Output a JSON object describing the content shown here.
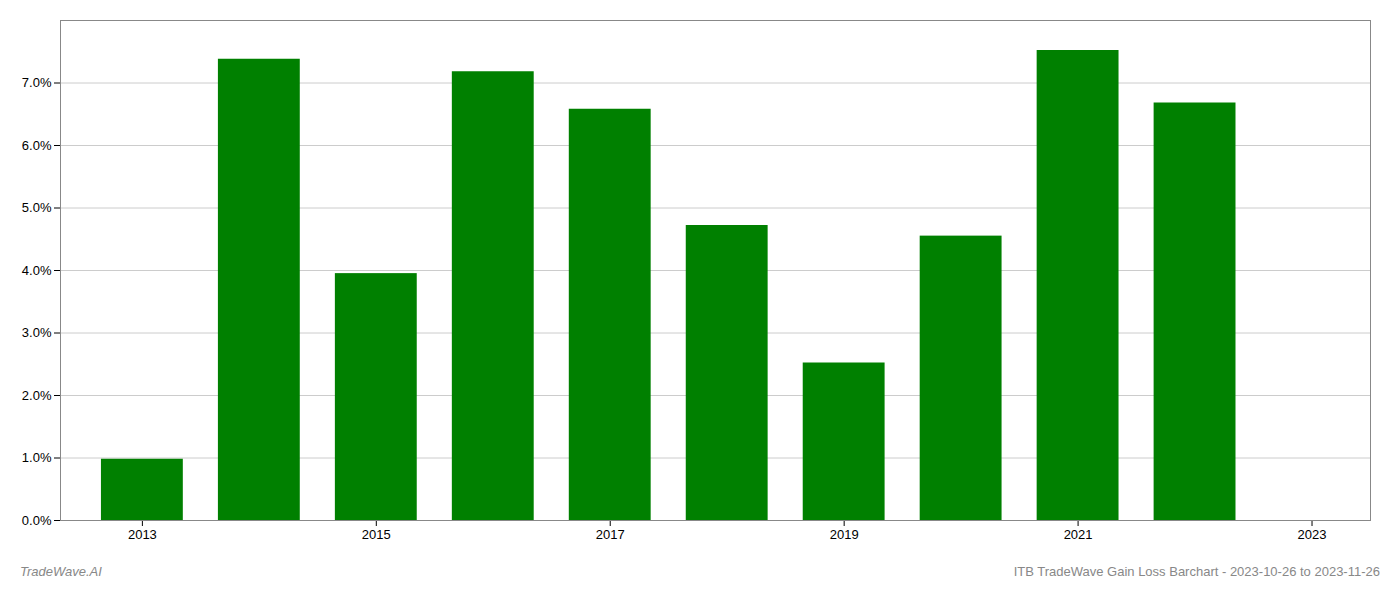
{
  "chart_data": {
    "type": "bar",
    "x": [
      2013,
      2014,
      2015,
      2016,
      2017,
      2018,
      2019,
      2020,
      2021,
      2022
    ],
    "values": [
      0.0098,
      0.0738,
      0.0395,
      0.0718,
      0.0658,
      0.0472,
      0.0252,
      0.0455,
      0.0752,
      0.0668
    ],
    "color": "#008000",
    "xlim": [
      2012.3,
      2023.5
    ],
    "xticks": [
      2013,
      2015,
      2017,
      2019,
      2021,
      2023
    ],
    "ylim": [
      0,
      0.08
    ],
    "yticks": [
      {
        "value": 0.0,
        "label": "0.0%"
      },
      {
        "value": 0.01,
        "label": "1.0%"
      },
      {
        "value": 0.02,
        "label": "2.0%"
      },
      {
        "value": 0.03,
        "label": "3.0%"
      },
      {
        "value": 0.04,
        "label": "4.0%"
      },
      {
        "value": 0.05,
        "label": "5.0%"
      },
      {
        "value": 0.06,
        "label": "6.0%"
      },
      {
        "value": 0.07,
        "label": "7.0%"
      }
    ],
    "grid": true,
    "annotations": [
      "TradeWave.AI",
      "ITB TradeWave Gain Loss Barchart - 2023-10-26 to 2023-11-26"
    ]
  }
}
